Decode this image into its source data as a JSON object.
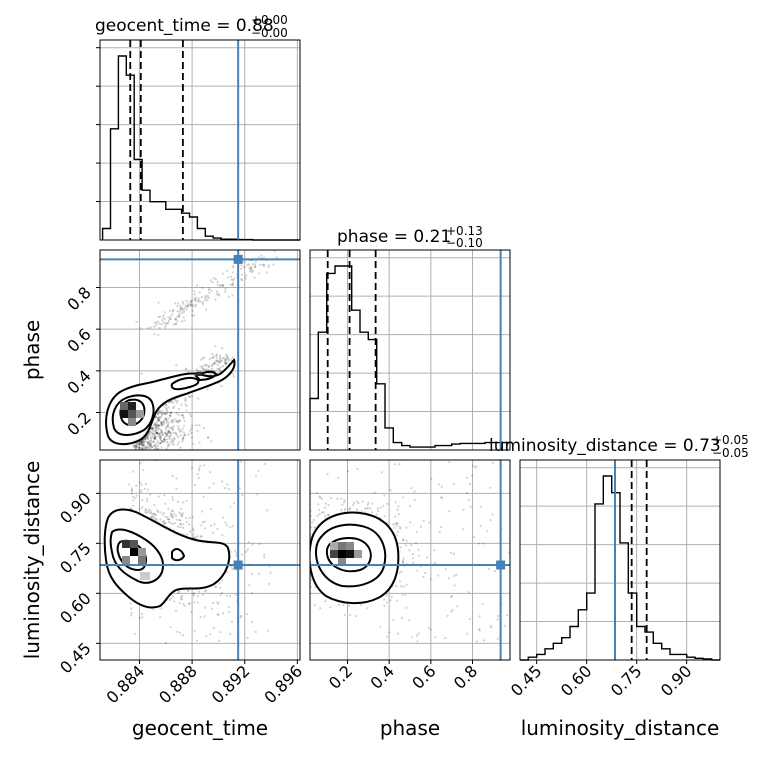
{
  "chart_data": {
    "type": "corner",
    "truth_color": "#4682b4",
    "parameters": [
      {
        "name": "geocent_time",
        "title_prefix": "geocent_time = 0.88",
        "title_plus": "+0.00",
        "title_minus": "−0.00",
        "range": [
          0.881,
          0.8962
        ],
        "ticks": [
          0.884,
          0.888,
          0.892,
          0.896
        ],
        "tick_labels": [
          "0.884",
          "0.888",
          "0.892",
          "0.896"
        ],
        "truth": 0.8915,
        "quantiles": [
          0.8833,
          0.8841,
          0.8873
        ],
        "hist_edges_start": 0.8812,
        "hist_bin_width": 0.0006,
        "hist_counts": [
          3,
          29,
          48,
          43,
          21,
          13,
          10,
          10,
          8,
          8,
          7,
          6,
          3,
          1,
          0.5,
          0.2,
          0.2,
          0.1,
          0.1,
          0,
          0,
          0,
          0,
          0,
          0
        ]
      },
      {
        "name": "phase",
        "title_prefix": "phase = 0.21",
        "title_plus": "+0.13",
        "title_minus": "−0.10",
        "range": [
          0.02,
          0.98
        ],
        "ticks": [
          0.2,
          0.4,
          0.6,
          0.8
        ],
        "tick_labels": [
          "0.2",
          "0.4",
          "0.6",
          "0.8"
        ],
        "truth": 0.935,
        "quantiles": [
          0.105,
          0.21,
          0.335
        ],
        "hist_edges_start": 0.02,
        "hist_bin_width": 0.04,
        "hist_counts": [
          7,
          16,
          24,
          25,
          25,
          19,
          16,
          15,
          9,
          3,
          1,
          0.6,
          0.4,
          0.4,
          0.4,
          0.6,
          0.6,
          0.8,
          0.9,
          0.9,
          0.9,
          1.0,
          1.0,
          1.0
        ]
      },
      {
        "name": "luminosity_distance",
        "title_prefix": "luminosity_distance = 0.73",
        "title_plus": "+0.05",
        "title_minus": "−0.05",
        "range": [
          0.4,
          1.0
        ],
        "ticks": [
          0.45,
          0.6,
          0.75,
          0.9
        ],
        "tick_labels": [
          "0.45",
          "0.60",
          "0.75",
          "0.90"
        ],
        "truth": 0.685,
        "quantiles": [
          0.685,
          0.735,
          0.78
        ],
        "hist_edges_start": 0.4,
        "hist_bin_width": 0.025,
        "hist_counts": [
          0,
          0.5,
          1,
          2,
          3,
          4,
          6,
          9,
          12,
          28,
          33,
          30,
          21,
          12,
          6,
          5,
          3,
          2,
          1,
          1,
          0.5,
          0.3,
          0.2,
          0
        ]
      }
    ],
    "grid": true
  }
}
